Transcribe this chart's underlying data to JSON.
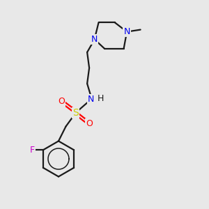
{
  "background_color": "#e8e8e8",
  "bond_color": "#1a1a1a",
  "N_color": "#0000ee",
  "S_color": "#cccc00",
  "O_color": "#ff0000",
  "F_color": "#cc00cc",
  "line_width": 1.6,
  "figsize": [
    3.0,
    3.0
  ],
  "dpi": 100,
  "xlim": [
    0,
    10
  ],
  "ylim": [
    0,
    10
  ],
  "font_size": 9
}
